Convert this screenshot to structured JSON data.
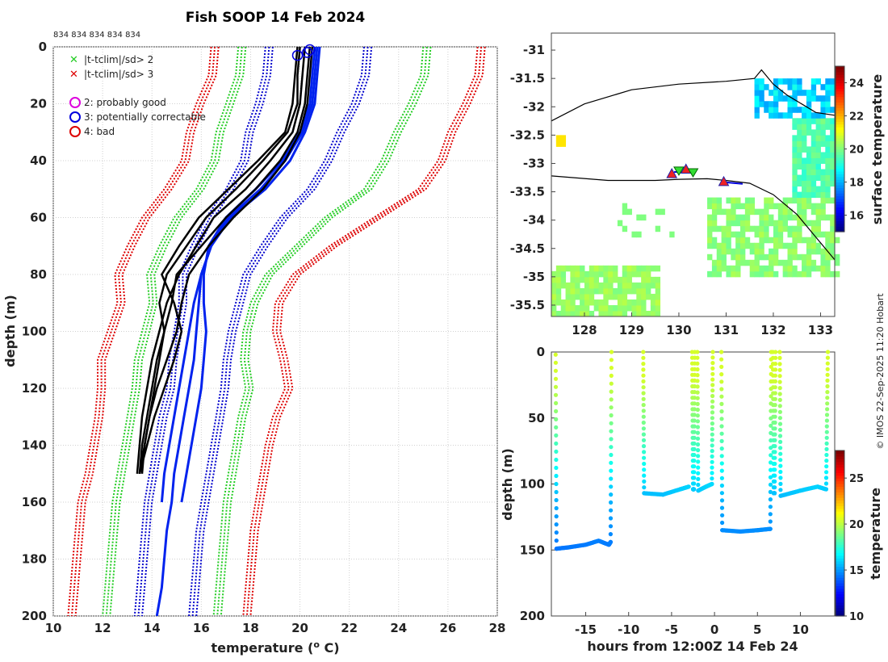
{
  "title": "Fish SOOP 14 Feb 2024",
  "profile_ids": "834 834 834 834 834",
  "credit": "© IMOS 22-Sep-2025 11:20 Hobart",
  "chart_data": [
    {
      "type": "line",
      "name": "profile",
      "xlabel": "temperature (",
      "xlabel_sup": "o",
      "xlabel_end": " C)",
      "ylabel": "depth (m)",
      "xlim": [
        10,
        28
      ],
      "ylim": [
        200,
        0
      ],
      "xticks": [
        10,
        12,
        14,
        16,
        18,
        20,
        22,
        24,
        26,
        28
      ],
      "yticks": [
        0,
        20,
        40,
        60,
        80,
        100,
        120,
        140,
        160,
        180,
        200
      ],
      "legend": [
        {
          "label": "|t-tclim|/sd> 2",
          "marker": "x",
          "color": "#22cc22"
        },
        {
          "label": "|t-tclim|/sd> 3",
          "marker": "x",
          "color": "#dd0000"
        },
        {
          "label": "2: probably good",
          "marker": "o",
          "color": "#dd00dd"
        },
        {
          "label": "3: potentially correctable",
          "marker": "o",
          "color": "#0000dd"
        },
        {
          "label": "4: bad",
          "marker": "o",
          "color": "#dd0000"
        }
      ],
      "depth": [
        0,
        10,
        20,
        30,
        40,
        50,
        60,
        70,
        80,
        90,
        100,
        110,
        120,
        130,
        140,
        150,
        160,
        170,
        180,
        190,
        200
      ],
      "climatology": [
        {
          "name": "mean-3sd",
          "color": "#dd0000",
          "values": [
            16.4,
            16.3,
            15.8,
            15.4,
            15.2,
            14.5,
            13.6,
            13.0,
            12.5,
            12.6,
            12.2,
            11.8,
            11.8,
            11.7,
            11.5,
            11.3,
            11.0,
            10.9,
            10.8,
            10.7,
            10.6
          ]
        },
        {
          "name": "mean-2sd",
          "color": "#22cc22",
          "values": [
            17.5,
            17.4,
            17.0,
            16.6,
            16.4,
            15.8,
            14.9,
            14.3,
            13.8,
            13.9,
            13.6,
            13.3,
            13.2,
            13.0,
            12.8,
            12.6,
            12.4,
            12.3,
            12.2,
            12.1,
            12.0
          ]
        },
        {
          "name": "mean-1sd",
          "color": "#0000cc",
          "values": [
            18.6,
            18.5,
            18.2,
            17.8,
            17.6,
            17.0,
            16.2,
            15.6,
            15.1,
            15.1,
            14.9,
            14.7,
            14.6,
            14.3,
            14.1,
            13.9,
            13.7,
            13.6,
            13.5,
            13.4,
            13.3
          ]
        },
        {
          "name": "mean+1sd",
          "color": "#0000cc",
          "values": [
            22.6,
            22.5,
            22.1,
            21.5,
            21.0,
            20.3,
            19.2,
            18.4,
            17.7,
            17.4,
            17.1,
            16.9,
            16.8,
            16.6,
            16.4,
            16.2,
            16.0,
            15.8,
            15.7,
            15.6,
            15.5
          ]
        },
        {
          "name": "mean+2sd",
          "color": "#22cc22",
          "values": [
            25.0,
            24.9,
            24.4,
            23.8,
            23.3,
            22.6,
            21.0,
            19.8,
            18.6,
            18.0,
            17.7,
            17.6,
            17.8,
            17.5,
            17.3,
            17.1,
            16.9,
            16.8,
            16.7,
            16.6,
            16.5
          ]
        },
        {
          "name": "mean+3sd",
          "color": "#dd0000",
          "values": [
            27.2,
            27.1,
            26.6,
            26.0,
            25.6,
            24.8,
            23.0,
            21.2,
            19.7,
            19.0,
            18.9,
            19.2,
            19.4,
            18.9,
            18.6,
            18.4,
            18.2,
            18.0,
            17.9,
            17.8,
            17.7
          ]
        }
      ],
      "observed": [
        {
          "name": "obs-1",
          "values": [
            20.2,
            20.1,
            20.0,
            19.7,
            18.8,
            17.8,
            16.5,
            15.8,
            15.1,
            14.6,
            14.3,
            14.0,
            13.8,
            13.6,
            13.5,
            13.4
          ]
        },
        {
          "name": "obs-2",
          "values": [
            20.4,
            20.3,
            20.2,
            19.9,
            19.2,
            18.2,
            17.0,
            16.0,
            15.0,
            14.8,
            14.5,
            14.2,
            14.0,
            13.8,
            13.6,
            13.5
          ]
        },
        {
          "name": "obs-3",
          "values": [
            20.0,
            19.9,
            19.9,
            19.5,
            18.5,
            17.4,
            16.2,
            15.4,
            14.6,
            14.3,
            14.5,
            14.3,
            14.1,
            13.9,
            13.7,
            13.5
          ]
        },
        {
          "name": "obs-4",
          "values": [
            20.5,
            20.4,
            20.3,
            20.0,
            19.4,
            18.5,
            17.3,
            16.3,
            15.5,
            15.2,
            15.0,
            14.6,
            14.2,
            13.9,
            13.7,
            13.6
          ]
        },
        {
          "name": "obs-5",
          "values": [
            19.9,
            19.8,
            19.7,
            19.4,
            18.3,
            17.1,
            15.9,
            15.1,
            14.4,
            14.9,
            15.2,
            14.9,
            14.5,
            14.1,
            13.8,
            13.5
          ]
        }
      ],
      "obs_depth": [
        0,
        10,
        20,
        30,
        40,
        50,
        60,
        70,
        80,
        90,
        100,
        110,
        120,
        130,
        140,
        150
      ],
      "qc_blue": [
        {
          "name": "qc-1",
          "values": [
            20.8,
            20.7,
            20.6,
            20.2,
            19.6,
            18.6,
            17.2,
            16.4,
            16.0,
            15.9,
            15.8,
            15.7,
            15.5,
            15.3,
            15.1,
            14.9,
            14.8,
            14.6,
            14.5,
            14.4,
            14.2
          ]
        },
        {
          "name": "qc-2",
          "values": [
            20.6,
            20.5,
            20.4,
            20.0,
            19.3,
            18.2,
            17.0,
            16.3,
            16.1,
            16.1,
            16.2,
            16.1,
            16.0,
            15.8,
            15.6,
            15.4,
            15.2
          ]
        },
        {
          "name": "qc-3",
          "values": [
            20.7,
            20.6,
            20.5,
            20.1,
            19.4,
            18.4,
            17.1,
            16.4,
            16.0,
            15.7,
            15.5,
            15.3,
            15.1,
            14.9,
            14.7,
            14.5,
            14.4
          ]
        }
      ],
      "qc_markers": [
        {
          "flag": 3,
          "temperature": 19.9,
          "depth": 3
        },
        {
          "flag": 3,
          "temperature": 20.3,
          "depth": 2
        },
        {
          "flag": 3,
          "temperature": 20.4,
          "depth": 1
        }
      ]
    },
    {
      "type": "heatmap",
      "name": "sst-map",
      "colorbar_label": "surface temperature",
      "clim": [
        15,
        25
      ],
      "colorbar_ticks": [
        16,
        18,
        20,
        22,
        24
      ],
      "xlim": [
        127.3,
        133.3
      ],
      "ylim": [
        -35.7,
        -30.7
      ],
      "xticks": [
        128,
        129,
        130,
        131,
        132,
        133
      ],
      "yticks": [
        -31,
        -31.5,
        -32,
        -32.5,
        -33,
        -33.5,
        -34,
        -34.5,
        -35,
        -35.5
      ],
      "coastline": [
        [
          127.3,
          -32.25
        ],
        [
          128.0,
          -31.95
        ],
        [
          129.0,
          -31.7
        ],
        [
          130.0,
          -31.6
        ],
        [
          131.0,
          -31.55
        ],
        [
          131.6,
          -31.5
        ],
        [
          131.75,
          -31.35
        ],
        [
          132.0,
          -31.6
        ],
        [
          132.3,
          -31.8
        ],
        [
          132.6,
          -31.95
        ],
        [
          132.9,
          -32.1
        ],
        [
          133.3,
          -32.15
        ]
      ],
      "track": [
        [
          127.3,
          -33.22
        ],
        [
          128.5,
          -33.3
        ],
        [
          129.5,
          -33.3
        ],
        [
          130.0,
          -33.28
        ],
        [
          130.6,
          -33.27
        ],
        [
          131.0,
          -33.3
        ],
        [
          131.5,
          -33.35
        ],
        [
          132.0,
          -33.55
        ],
        [
          132.5,
          -33.9
        ],
        [
          132.9,
          -34.3
        ],
        [
          133.3,
          -34.7
        ]
      ],
      "stations": [
        {
          "lon": 129.85,
          "lat": -33.18,
          "flag": "bad"
        },
        {
          "lon": 130.0,
          "lat": -33.12,
          "flag": "good"
        },
        {
          "lon": 130.15,
          "lat": -33.1,
          "flag": "bad"
        },
        {
          "lon": 130.3,
          "lat": -33.15,
          "flag": "good"
        },
        {
          "lon": 130.95,
          "lat": -33.32,
          "flag": "bad"
        }
      ]
    },
    {
      "type": "scatter",
      "name": "depth-time",
      "xlabel": "hours from 12:00Z 14 Feb 24",
      "ylabel": "depth (m)",
      "colorbar_label": "temperature",
      "clim": [
        10,
        28
      ],
      "colorbar_ticks": [
        10,
        15,
        20,
        25
      ],
      "xlim": [
        -19,
        14
      ],
      "ylim": [
        200,
        0
      ],
      "xticks": [
        -15,
        -10,
        -5,
        0,
        5,
        10
      ],
      "yticks": [
        0,
        50,
        100,
        150,
        200
      ],
      "casts": [
        {
          "t": [
            -18.5,
            -18.4,
            -17.0,
            -15.0,
            -13.5,
            -12.3,
            -12.1,
            -12.0
          ],
          "depth": [
            2,
            149,
            148,
            146,
            143,
            146,
            144,
            0
          ]
        },
        {
          "t": [
            -8.3,
            -8.2,
            -6.0,
            -4.0,
            -3.0
          ],
          "depth": [
            0,
            107,
            108,
            104,
            102
          ]
        },
        {
          "t": [
            -2.6,
            -2.5,
            -2.4,
            -2.3
          ],
          "depth": [
            0,
            104,
            104,
            0
          ]
        },
        {
          "t": [
            -2.0,
            -1.9,
            -1.0,
            -0.3,
            -0.2
          ],
          "depth": [
            0,
            105,
            102,
            100,
            0
          ]
        },
        {
          "t": [
            0.8,
            0.9,
            3.0,
            5.0,
            6.5,
            6.6
          ],
          "depth": [
            0,
            135,
            136,
            135,
            134,
            0
          ]
        },
        {
          "t": [
            6.8,
            6.9,
            7.0,
            7.1
          ],
          "depth": [
            0,
            107,
            107,
            0
          ]
        },
        {
          "t": [
            7.6,
            7.7,
            10.0,
            12.0,
            13.0,
            13.2
          ],
          "depth": [
            0,
            109,
            105,
            102,
            104,
            0
          ]
        }
      ]
    }
  ]
}
